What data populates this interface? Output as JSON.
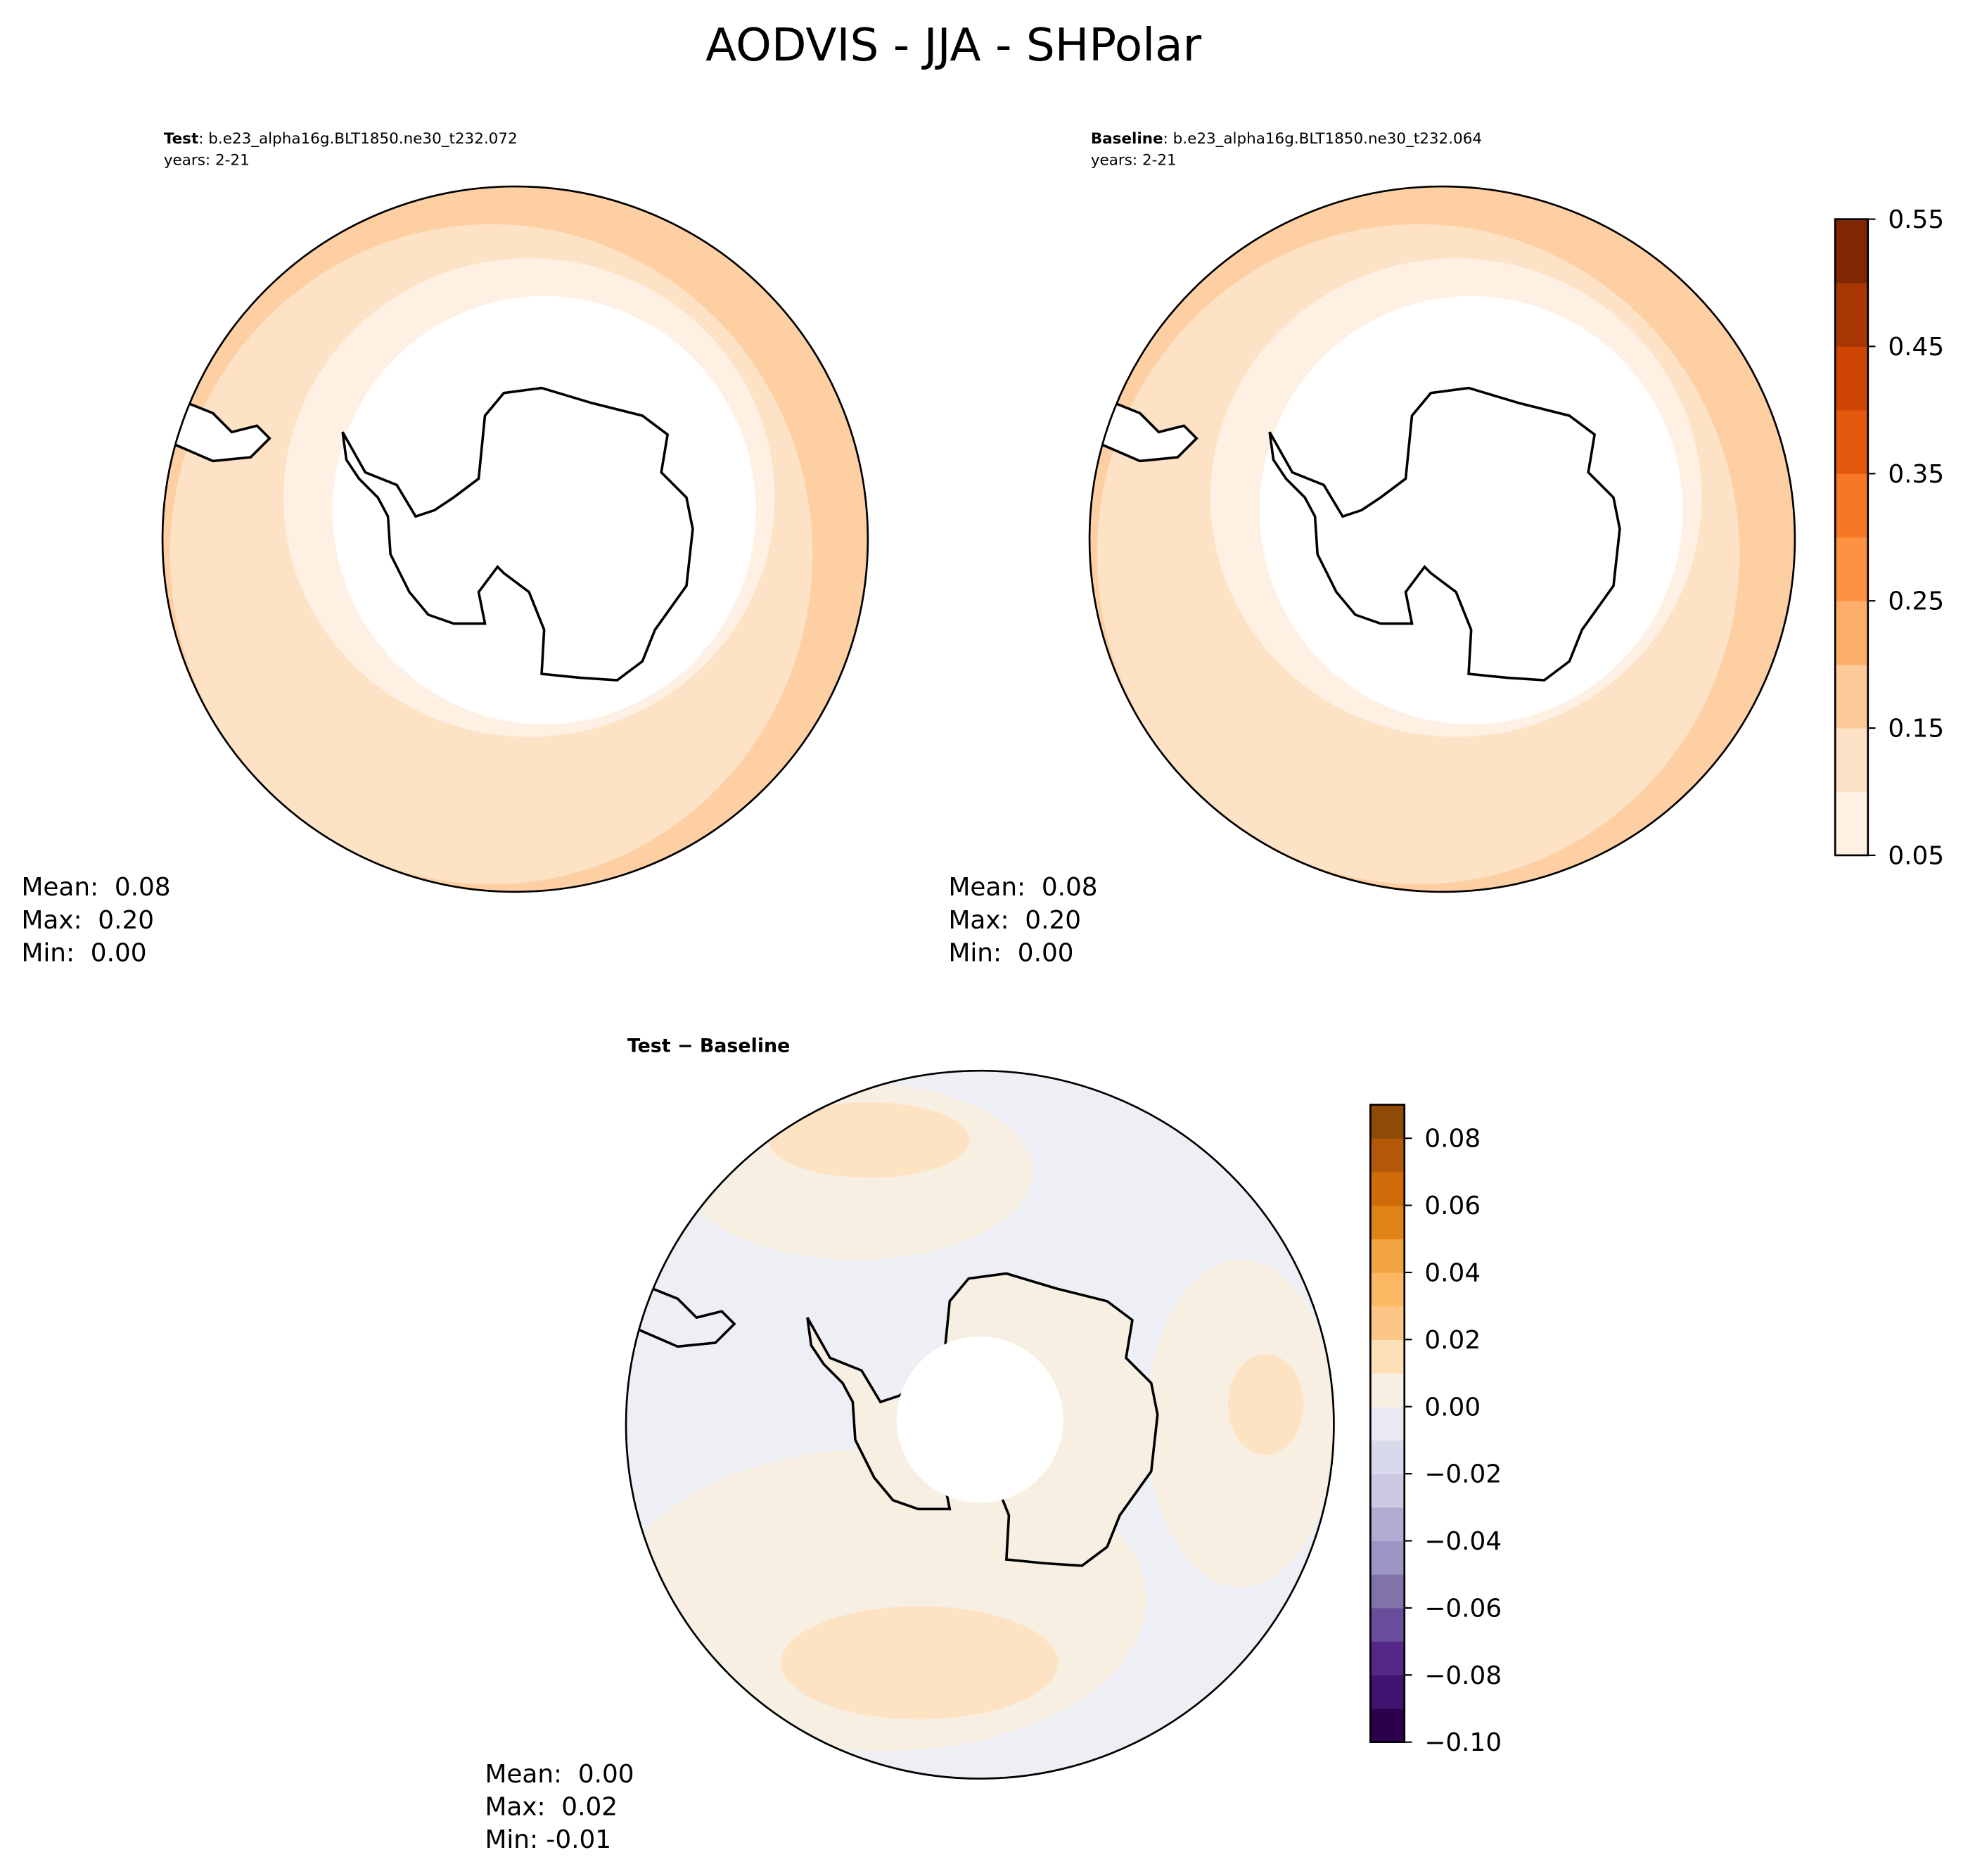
{
  "title": "AODVIS - JJA - SHPolar",
  "chart_data": [
    {
      "type": "map",
      "subtitle_bold": "Test",
      "subtitle": ": b.e23_alpha16g.BLT1850.ne30_t232.072",
      "years": "years: 2-21",
      "stats": [
        "Mean:  0.08",
        "Max:  0.20",
        "Min:  0.00"
      ]
    },
    {
      "type": "map",
      "subtitle_bold": "Baseline",
      "subtitle": ": b.e23_alpha16g.BLT1850.ne30_t232.064",
      "years": "years: 2-21",
      "stats": [
        "Mean:  0.08",
        "Max:  0.20",
        "Min:  0.00"
      ],
      "colorbar": {
        "clim": [
          0.05,
          0.55
        ],
        "cticks": [
          0.05,
          0.15,
          0.25,
          0.35,
          0.45,
          0.55
        ],
        "colors": [
          "#fff0e4",
          "#fee2c7",
          "#fdcb9b",
          "#fdae6b",
          "#fd9243",
          "#f67824",
          "#e5590e",
          "#cf4503",
          "#a83703",
          "#7f2704"
        ]
      }
    },
    {
      "type": "map",
      "title": "Test − Baseline",
      "stats": [
        "Mean:  0.00",
        "Max:  0.02",
        "Min: -0.01"
      ],
      "colorbar": {
        "clim": [
          -0.1,
          0.09
        ],
        "cticks": [
          {
            "value": -0.1,
            "label": "−0.10"
          },
          {
            "value": -0.08,
            "label": "−0.08"
          },
          {
            "value": -0.06,
            "label": "−0.06"
          },
          {
            "value": -0.04,
            "label": "−0.04"
          },
          {
            "value": -0.02,
            "label": "−0.02"
          },
          {
            "value": 0,
            "label": "0.00"
          },
          0.02,
          0.04,
          0.06,
          0.08
        ],
        "colors": [
          "#2d004b",
          "#3e1470",
          "#542788",
          "#6a4d9a",
          "#8073ac",
          "#9c95c3",
          "#b2abd2",
          "#cdc8e2",
          "#d8daeb",
          "#e8e9f1",
          "#f8efe3",
          "#fee0b6",
          "#fdc686",
          "#fdb863",
          "#f1a340",
          "#e08214",
          "#d06b0a",
          "#b35806",
          "#8f4a08"
        ]
      }
    }
  ]
}
